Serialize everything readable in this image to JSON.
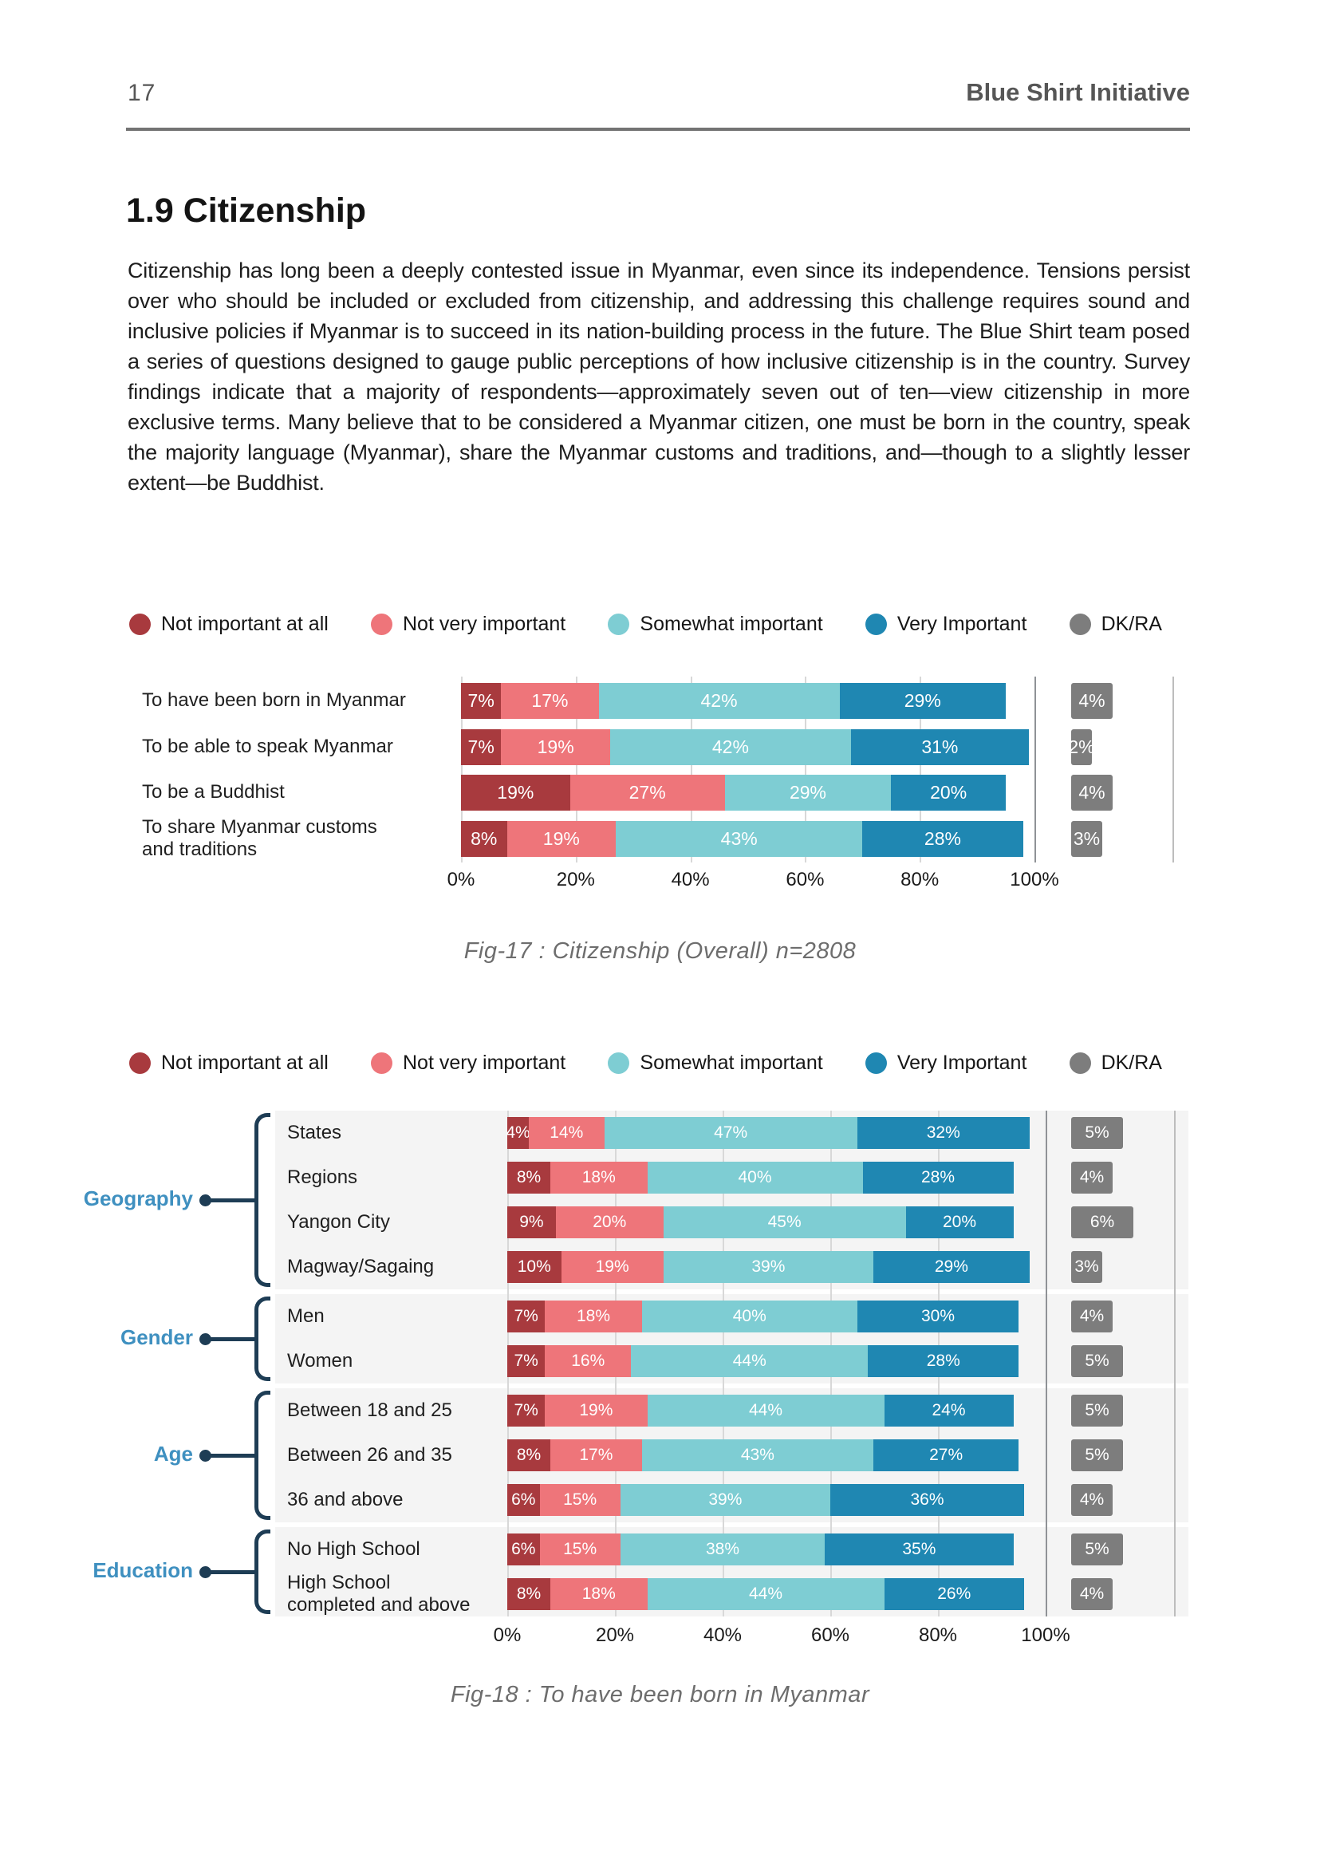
{
  "page": {
    "number": "17",
    "brand": "Blue Shirt Initiative"
  },
  "section": {
    "title": "1.9 Citizenship",
    "body": "Citizenship has long been a deeply contested issue in Myanmar, even since its independence. Tensions persist over who should be included or excluded from citizenship, and addressing this challenge requires sound and inclusive policies if Myanmar is to succeed in its nation-building process in the future. The Blue Shirt team posed a series of questions designed to gauge public perceptions of how inclusive citizenship is in the country. Survey findings indicate that a majority of respondents—approximately seven out of ten—view citizenship in more exclusive terms. Many believe that to be considered a Myanmar citizen, one must be born in the country, speak the majority language (Myanmar), share the Myanmar customs and traditions, and—though to a slightly lesser extent—be Buddhist."
  },
  "legend": {
    "items": [
      {
        "label": "Not important at all",
        "color": "#a83a3e"
      },
      {
        "label": "Not very important",
        "color": "#ee757a"
      },
      {
        "label": "Somewhat important",
        "color": "#7ecdd3"
      },
      {
        "label": "Very Important",
        "color": "#1f87b2"
      },
      {
        "label": "DK/RA",
        "color": "#7d7d7d"
      }
    ]
  },
  "chart_data": [
    {
      "type": "bar",
      "orientation": "horizontal",
      "stacked": true,
      "caption": "Fig-17 : Citizenship (Overall) n=2808",
      "series_names": [
        "Not important at all",
        "Not very important",
        "Somewhat important",
        "Very Important"
      ],
      "dk_name": "DK/RA",
      "x_ticks": [
        "0%",
        "20%",
        "40%",
        "60%",
        "80%",
        "100%"
      ],
      "xlim": [
        0,
        100
      ],
      "rows": [
        {
          "label": "To have been born in Myanmar",
          "values": [
            7,
            17,
            42,
            29
          ],
          "dk": 4
        },
        {
          "label": "To be able to speak Myanmar",
          "values": [
            7,
            19,
            42,
            31
          ],
          "dk": 2
        },
        {
          "label": "To be a Buddhist",
          "values": [
            19,
            27,
            29,
            20
          ],
          "dk": 4
        },
        {
          "label": "To share Myanmar customs\nand traditions",
          "values": [
            8,
            19,
            43,
            28
          ],
          "dk": 3
        }
      ]
    },
    {
      "type": "bar",
      "orientation": "horizontal",
      "stacked": true,
      "caption": "Fig-18 : To have been born in Myanmar",
      "series_names": [
        "Not important at all",
        "Not very important",
        "Somewhat important",
        "Very Important"
      ],
      "dk_name": "DK/RA",
      "x_ticks": [
        "0%",
        "20%",
        "40%",
        "60%",
        "80%",
        "100%"
      ],
      "xlim": [
        0,
        100
      ],
      "groups": [
        {
          "name": "Geography",
          "rows": [
            {
              "label": "States",
              "values": [
                4,
                14,
                47,
                32
              ],
              "dk": 5
            },
            {
              "label": "Regions",
              "values": [
                8,
                18,
                40,
                28
              ],
              "dk": 4
            },
            {
              "label": "Yangon City",
              "values": [
                9,
                20,
                45,
                20
              ],
              "dk": 6
            },
            {
              "label": "Magway/Sagaing",
              "values": [
                10,
                19,
                39,
                29
              ],
              "dk": 3
            }
          ]
        },
        {
          "name": "Gender",
          "rows": [
            {
              "label": "Men",
              "values": [
                7,
                18,
                40,
                30
              ],
              "dk": 4
            },
            {
              "label": "Women",
              "values": [
                7,
                16,
                44,
                28
              ],
              "dk": 5
            }
          ]
        },
        {
          "name": "Age",
          "rows": [
            {
              "label": "Between 18 and 25",
              "values": [
                7,
                19,
                44,
                24
              ],
              "dk": 5
            },
            {
              "label": "Between 26 and 35",
              "values": [
                8,
                17,
                43,
                27
              ],
              "dk": 5
            },
            {
              "label": "36 and above",
              "values": [
                6,
                15,
                39,
                36
              ],
              "dk": 4
            }
          ]
        },
        {
          "name": "Education",
          "rows": [
            {
              "label": "No High School",
              "values": [
                6,
                15,
                38,
                35
              ],
              "dk": 5
            },
            {
              "label": "High School\ncompleted and above",
              "values": [
                8,
                18,
                44,
                26
              ],
              "dk": 4
            }
          ]
        }
      ]
    }
  ]
}
